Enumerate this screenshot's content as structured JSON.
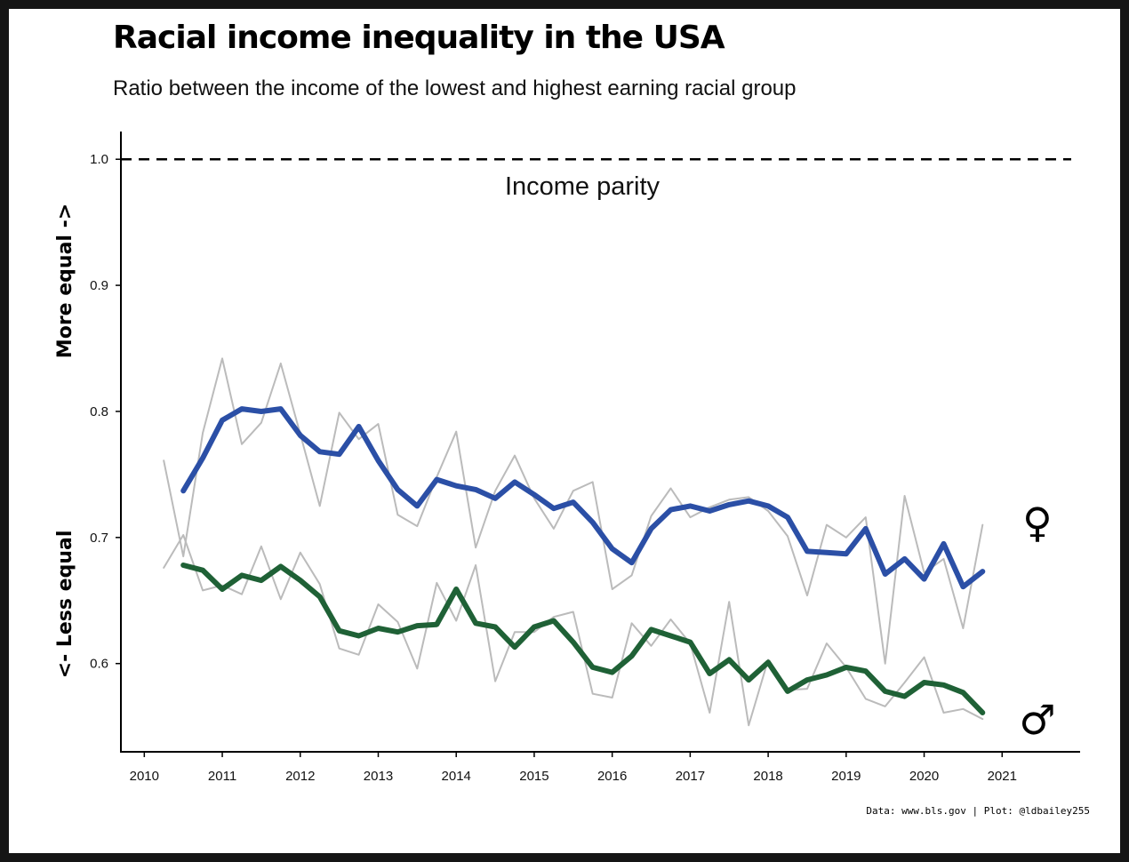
{
  "title": "Racial income inequality in the USA",
  "subtitle": "Ratio between the income of the lowest and highest earning racial group",
  "caption": "Data: www.bls.gov | Plot: @ldbailey255",
  "reference_label": "Income parity",
  "ylabel_top": "More equal ->",
  "ylabel_bottom": "<- Less equal",
  "female_symbol": "♀",
  "male_symbol": "♂",
  "colors": {
    "female_trend": "#2b4fa6",
    "male_trend": "#1f6136",
    "raw": "#bbbbbb",
    "reference": "#000000"
  },
  "chart_data": {
    "type": "line",
    "title": "Racial income inequality in the USA",
    "subtitle": "Ratio between the income of the lowest and highest earning racial group",
    "xlim": [
      2009.7,
      2022.0
    ],
    "ylim": [
      0.53,
      1.022
    ],
    "x_ticks": [
      2010,
      2011,
      2012,
      2013,
      2014,
      2015,
      2016,
      2017,
      2018,
      2019,
      2020,
      2021
    ],
    "y_ticks": [
      0.6,
      0.7,
      0.8,
      0.9,
      1.0
    ],
    "reference_line": {
      "y": 1.0,
      "label": "Income parity",
      "style": "dashed"
    },
    "raw_start": 2010.25,
    "smooth_start": 2010.5,
    "step": 0.25,
    "series": [
      {
        "symbol": "♀",
        "kind": "raw",
        "values": [
          0.761,
          0.685,
          0.783,
          0.842,
          0.774,
          0.791,
          0.838,
          0.782,
          0.725,
          0.799,
          0.778,
          0.79,
          0.718,
          0.709,
          0.748,
          0.784,
          0.692,
          0.737,
          0.765,
          0.731,
          0.707,
          0.737,
          0.744,
          0.659,
          0.67,
          0.717,
          0.739,
          0.716,
          0.724,
          0.73,
          0.732,
          0.721,
          0.701,
          0.654,
          0.71,
          0.7,
          0.716,
          0.6,
          0.733,
          0.672,
          0.683,
          0.628,
          0.71
        ]
      },
      {
        "symbol": "♀",
        "kind": "smoothed",
        "values": [
          0.737,
          0.763,
          0.793,
          0.802,
          0.8,
          0.802,
          0.781,
          0.768,
          0.766,
          0.788,
          0.761,
          0.738,
          0.725,
          0.746,
          0.741,
          0.738,
          0.731,
          0.744,
          0.734,
          0.723,
          0.728,
          0.712,
          0.691,
          0.68,
          0.707,
          0.722,
          0.725,
          0.721,
          0.726,
          0.729,
          0.725,
          0.716,
          0.689,
          0.688,
          0.687,
          0.707,
          0.671,
          0.683,
          0.667,
          0.695,
          0.661,
          0.673
        ]
      },
      {
        "symbol": "♂",
        "kind": "raw",
        "values": [
          0.676,
          0.702,
          0.658,
          0.662,
          0.655,
          0.693,
          0.651,
          0.688,
          0.663,
          0.612,
          0.607,
          0.647,
          0.633,
          0.596,
          0.664,
          0.634,
          0.678,
          0.586,
          0.625,
          0.625,
          0.637,
          0.641,
          0.576,
          0.573,
          0.632,
          0.614,
          0.635,
          0.616,
          0.561,
          0.649,
          0.551,
          0.603,
          0.579,
          0.58,
          0.616,
          0.597,
          0.572,
          0.566,
          0.585,
          0.605,
          0.561,
          0.564,
          0.556
        ]
      },
      {
        "symbol": "♂",
        "kind": "smoothed",
        "values": [
          0.678,
          0.674,
          0.659,
          0.67,
          0.666,
          0.677,
          0.666,
          0.653,
          0.626,
          0.622,
          0.628,
          0.625,
          0.63,
          0.631,
          0.659,
          0.632,
          0.629,
          0.613,
          0.629,
          0.634,
          0.617,
          0.597,
          0.593,
          0.606,
          0.627,
          0.622,
          0.617,
          0.592,
          0.603,
          0.587,
          0.601,
          0.578,
          0.587,
          0.591,
          0.597,
          0.594,
          0.578,
          0.574,
          0.585,
          0.583,
          0.577,
          0.561
        ]
      }
    ]
  }
}
